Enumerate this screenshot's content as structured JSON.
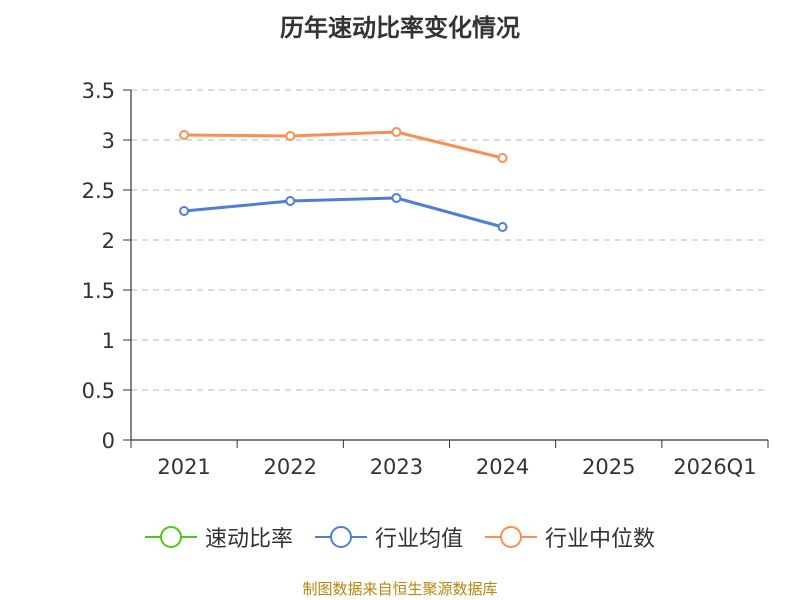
{
  "chart_data": {
    "type": "line",
    "title": "历年速动比率变化情况",
    "categories": [
      "2021",
      "2022",
      "2023",
      "2024",
      "2025",
      "2026Q1"
    ],
    "ylim": [
      0,
      3.5
    ],
    "yticks": [
      "0",
      "0.5",
      "1",
      "1.5",
      "2",
      "2.5",
      "3",
      "3.5"
    ],
    "ytick_values": [
      0,
      0.5,
      1,
      1.5,
      2,
      2.5,
      3,
      3.5
    ],
    "grid": true,
    "legend_position": "bottom",
    "series": [
      {
        "name": "速动比率",
        "color": "#52c41a",
        "values": [
          null,
          null,
          null,
          null,
          null,
          null
        ]
      },
      {
        "name": "行业均值",
        "color": "#4e7fd8",
        "values": [
          2.29,
          2.39,
          2.42,
          2.13,
          null,
          null
        ]
      },
      {
        "name": "行业中位数",
        "color": "#f79054",
        "values": [
          3.05,
          3.04,
          3.08,
          2.82,
          null,
          null
        ]
      }
    ],
    "source": "制图数据来自恒生聚源数据库"
  }
}
